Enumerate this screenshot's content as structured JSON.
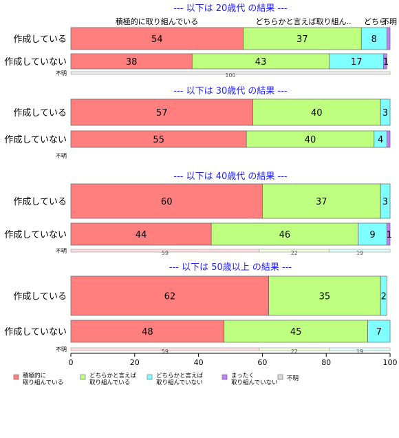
{
  "chart_data": {
    "type": "bar",
    "orientation": "horizontal",
    "stacked": true,
    "xlim": [
      0,
      100
    ],
    "x_ticks": [
      "0",
      "20",
      "40",
      "60",
      "80",
      "100"
    ],
    "legend_placement": "bottom",
    "series": [
      {
        "name": "積極的に\n取り組んでいる",
        "color": "#ff7f7f"
      },
      {
        "name": "どちらかと言えば\n取り組んでいる",
        "color": "#bfff7f"
      },
      {
        "name": "どちらかと言えば\n取り組んでいない",
        "color": "#7fffff"
      },
      {
        "name": "まったく\n取り組んでいない",
        "color": "#bf7fff"
      },
      {
        "name": "不明",
        "color": "#d9d9d9"
      }
    ],
    "panels": [
      {
        "title": "--- 以下は 20歳代 の結果 ---",
        "header_labels": [
          "積極的に取り組んでいる",
          "どちらかと言えば取り組ん..",
          "どちら..",
          "不明"
        ],
        "rows": [
          {
            "label": "作成している",
            "values": [
              54,
              37,
              8,
              1,
              0
            ],
            "value_labels": [
              "54",
              "37",
              "8",
              "",
              ""
            ]
          },
          {
            "label": "作成していない",
            "values": [
              38,
              43,
              17,
              1,
              0
            ],
            "value_labels": [
              "38",
              "43",
              "17",
              "1",
              ""
            ]
          }
        ],
        "unknown": {
          "label": "不明",
          "values": [
            0,
            0,
            0,
            0,
            100
          ],
          "value_labels": [
            "",
            "",
            "",
            "",
            "100"
          ]
        }
      },
      {
        "title": "--- 以下は 30歳代 の結果 ---",
        "rows": [
          {
            "label": "作成している",
            "values": [
              57,
              40,
              3,
              0,
              0
            ],
            "value_labels": [
              "57",
              "40",
              "3",
              "",
              ""
            ]
          },
          {
            "label": "作成していない",
            "values": [
              55,
              40,
              4,
              1,
              0
            ],
            "value_labels": [
              "55",
              "40",
              "4",
              "",
              ""
            ]
          }
        ],
        "unknown": {
          "label": "不明",
          "values": [
            0,
            0,
            0,
            0,
            0
          ],
          "value_labels": [
            "",
            "",
            "",
            "",
            ""
          ]
        }
      },
      {
        "title": "--- 以下は 40歳代 の結果 ---",
        "rows": [
          {
            "label": "作成している",
            "values": [
              60,
              37,
              3,
              0,
              0
            ],
            "value_labels": [
              "60",
              "37",
              "3",
              "",
              ""
            ]
          },
          {
            "label": "作成していない",
            "values": [
              44,
              46,
              9,
              1,
              0
            ],
            "value_labels": [
              "44",
              "46",
              "9",
              "1",
              ""
            ]
          }
        ],
        "unknown": {
          "label": "不明",
          "values": [
            59,
            22,
            19,
            0,
            0
          ],
          "value_labels": [
            "59",
            "22",
            "19",
            "",
            ""
          ]
        }
      },
      {
        "title": "--- 以下は 50歳以上 の結果 ---",
        "rows": [
          {
            "label": "作成している",
            "values": [
              62,
              35,
              2,
              0,
              0
            ],
            "value_labels": [
              "62",
              "35",
              "2",
              "",
              ""
            ]
          },
          {
            "label": "作成していない",
            "values": [
              48,
              45,
              7,
              0,
              0
            ],
            "value_labels": [
              "48",
              "45",
              "7",
              "",
              ""
            ]
          }
        ],
        "unknown": {
          "label": "不明",
          "values": [
            59,
            22,
            19,
            0,
            0
          ],
          "value_labels": [
            "59",
            "22",
            "19",
            "",
            ""
          ]
        }
      }
    ]
  }
}
